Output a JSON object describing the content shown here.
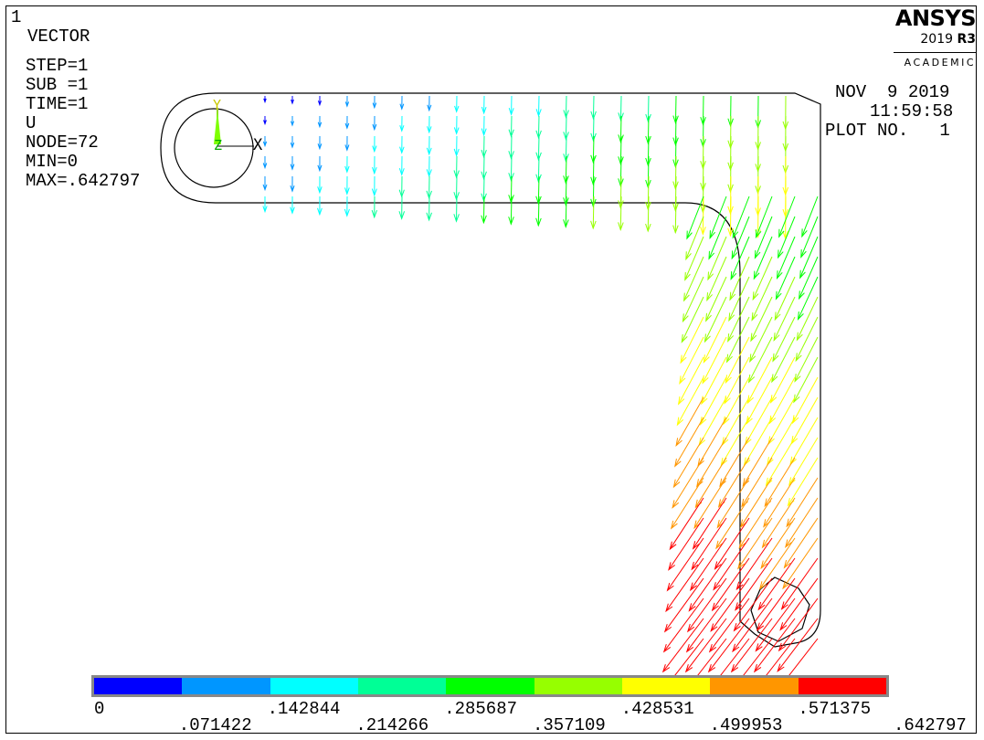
{
  "window_number": "1",
  "plot_info": {
    "lines": [
      "VECTOR",
      "STEP=1",
      "SUB =1",
      "TIME=1",
      "U",
      "NODE=72",
      "MIN=0",
      "MAX=.642797"
    ]
  },
  "logo": {
    "name": "ANSYS",
    "version": "2019",
    "release": "R3",
    "edition": "ACADEMIC"
  },
  "header_right": {
    "date": "NOV  9 2019",
    "time": "11:59:58",
    "plot_no": "PLOT NO.   1"
  },
  "triad": {
    "y_label": "Y",
    "z_label": "Z",
    "x_label": "X"
  },
  "legend": {
    "colors": [
      "#0000ff",
      "#0096ff",
      "#00ffff",
      "#00ff96",
      "#00ff00",
      "#96ff00",
      "#ffff00",
      "#ff9600",
      "#ff0000"
    ],
    "labels": [
      "0",
      ".071422",
      ".142844",
      ".214266",
      ".285687",
      ".357109",
      ".428531",
      ".499953",
      ".571375",
      ".642797"
    ]
  }
}
